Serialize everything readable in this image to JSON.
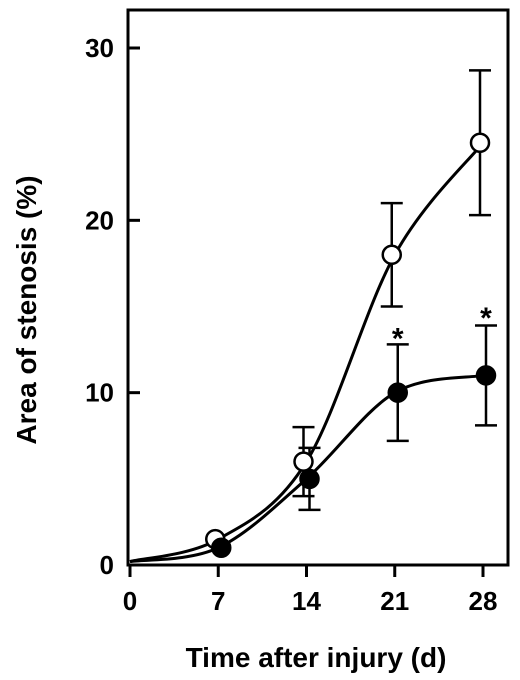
{
  "chart_data": {
    "type": "line",
    "xlabel": "Time after injury (d)",
    "ylabel": "Area of stenosis (%)",
    "xlim": [
      0,
      30
    ],
    "ylim": [
      0,
      32
    ],
    "x_ticks": [
      0,
      7,
      14,
      21,
      28
    ],
    "y_ticks": [
      0,
      10,
      20,
      30
    ],
    "x_tick_labels": [
      "0",
      "7",
      "14",
      "21",
      "28"
    ],
    "y_tick_labels": [
      "0",
      "10",
      "20",
      "30"
    ],
    "grid": false,
    "legend": "none",
    "series": [
      {
        "marker": "open-circle",
        "color": "#000000",
        "x": [
          0,
          7,
          14,
          21,
          28
        ],
        "values": [
          0.2,
          1.5,
          6,
          18,
          24.5
        ],
        "error": [
          0,
          0,
          2,
          3,
          4.2
        ]
      },
      {
        "marker": "filled-circle",
        "color": "#000000",
        "x": [
          0,
          7,
          14,
          21,
          28
        ],
        "values": [
          0.2,
          1,
          5,
          10,
          11
        ],
        "error": [
          0,
          0,
          1.8,
          2.8,
          2.9
        ]
      }
    ],
    "annotations": [
      {
        "text": "*",
        "x": 21,
        "y": 13.6
      },
      {
        "text": "*",
        "x": 28,
        "y": 14.8
      }
    ]
  }
}
